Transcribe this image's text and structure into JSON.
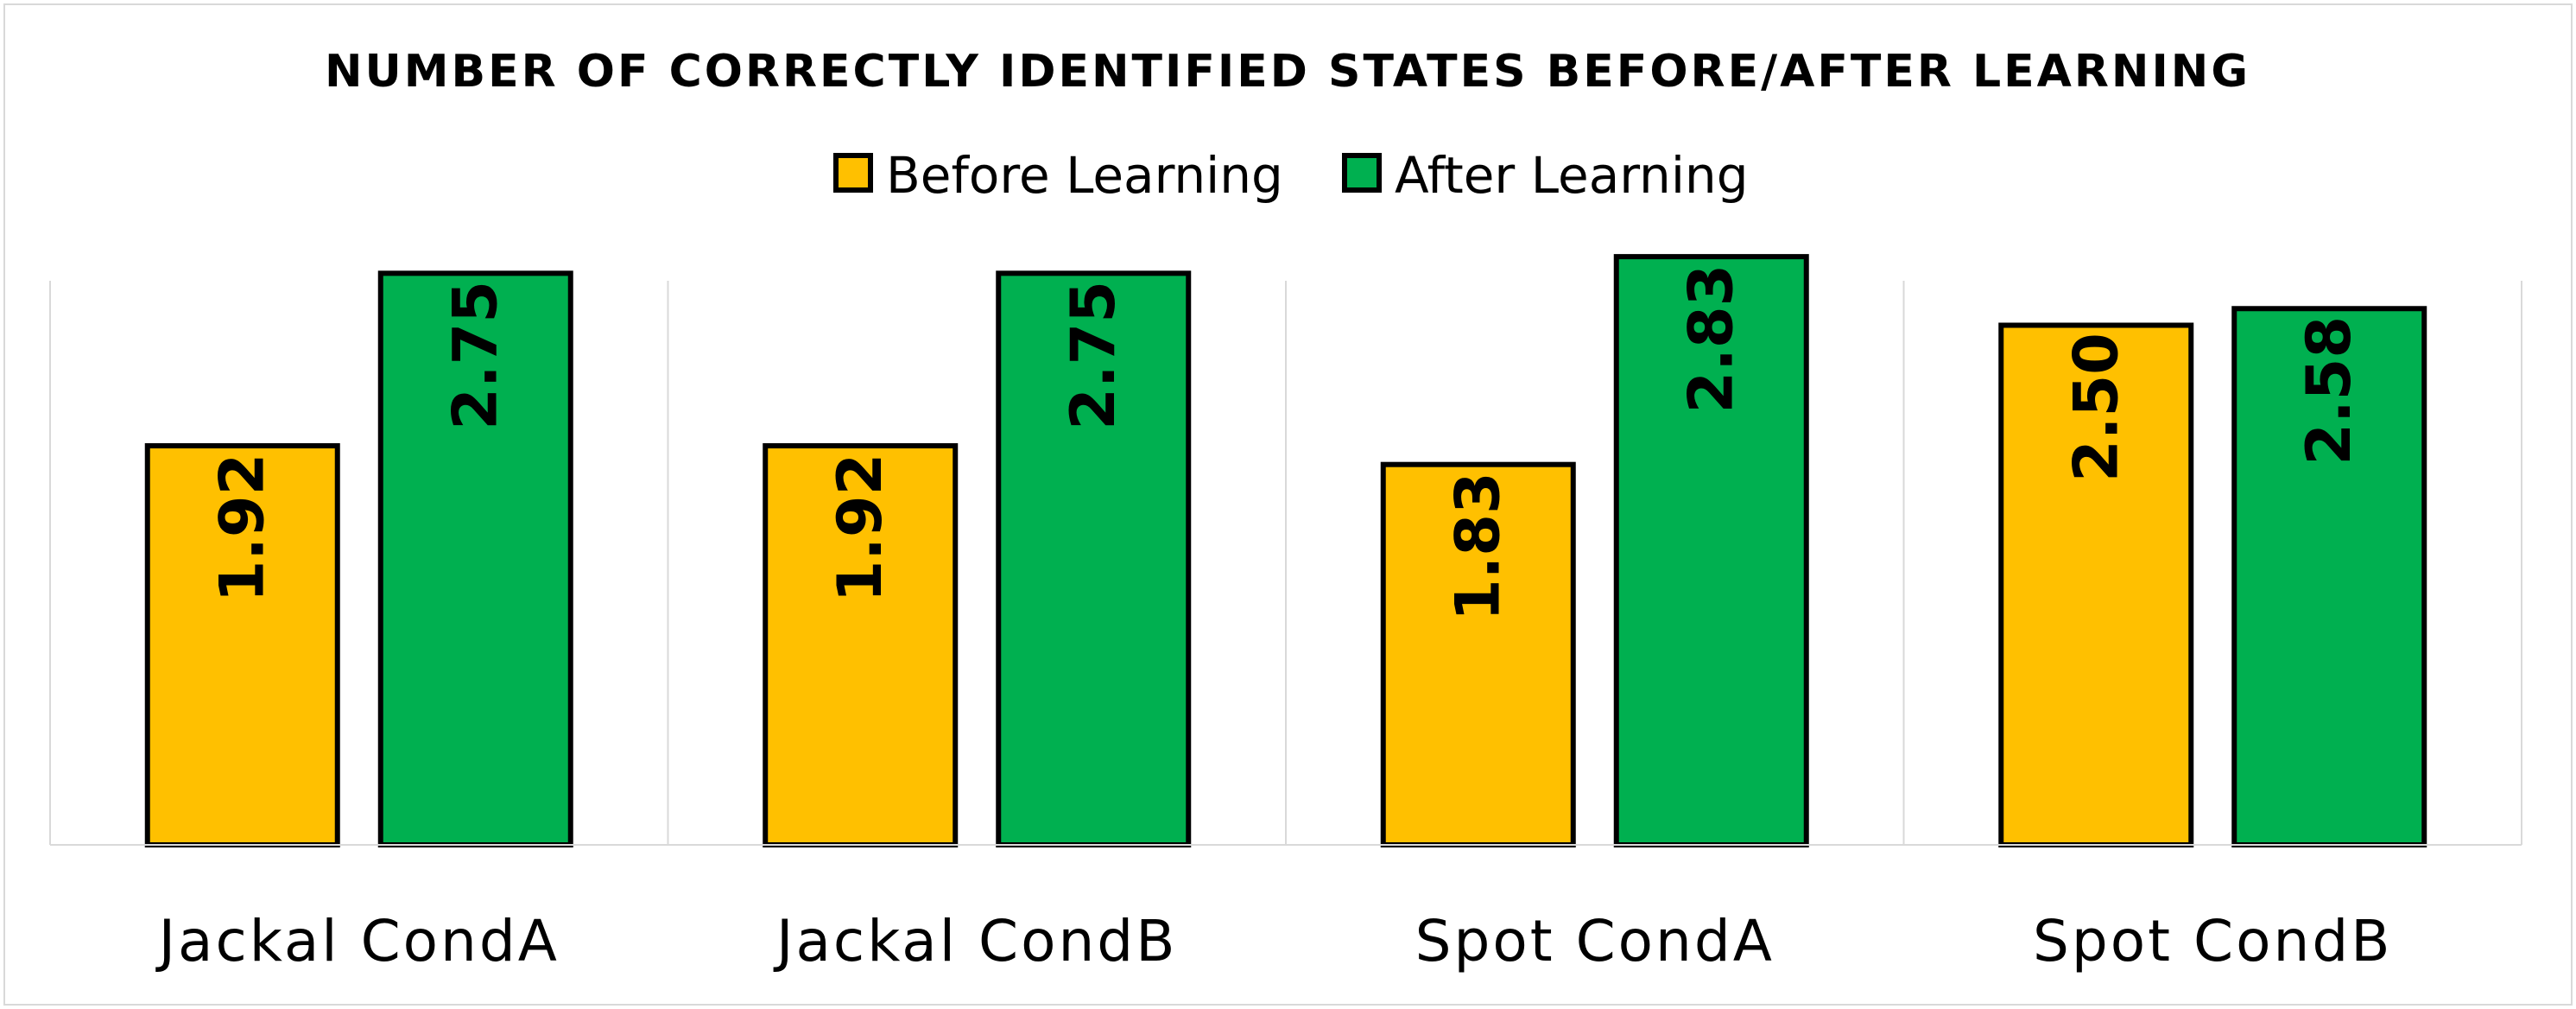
{
  "chart_data": {
    "type": "bar",
    "title": "NUMBER OF CORRECTLY IDENTIFIED STATES BEFORE/AFTER LEARNING",
    "categories": [
      "Jackal CondA",
      "Jackal CondB",
      "Spot CondA",
      "Spot CondB"
    ],
    "series": [
      {
        "name": "Before Learning",
        "values": [
          1.92,
          1.92,
          1.83,
          2.5
        ],
        "labels": [
          "1.92",
          "1.92",
          "1.83",
          "2.50"
        ],
        "color": "#FFC000"
      },
      {
        "name": "After Learning",
        "values": [
          2.75,
          2.75,
          2.83,
          2.58
        ],
        "labels": [
          "2.75",
          "2.75",
          "2.83",
          "2.58"
        ],
        "color": "#00B050"
      }
    ],
    "ylim": [
      0,
      3
    ],
    "legend": "top-center",
    "grid": false,
    "data_labels": "inside-end-rotated",
    "bar_outline_color": "#000000",
    "separator_color": "#d9d9d9"
  }
}
